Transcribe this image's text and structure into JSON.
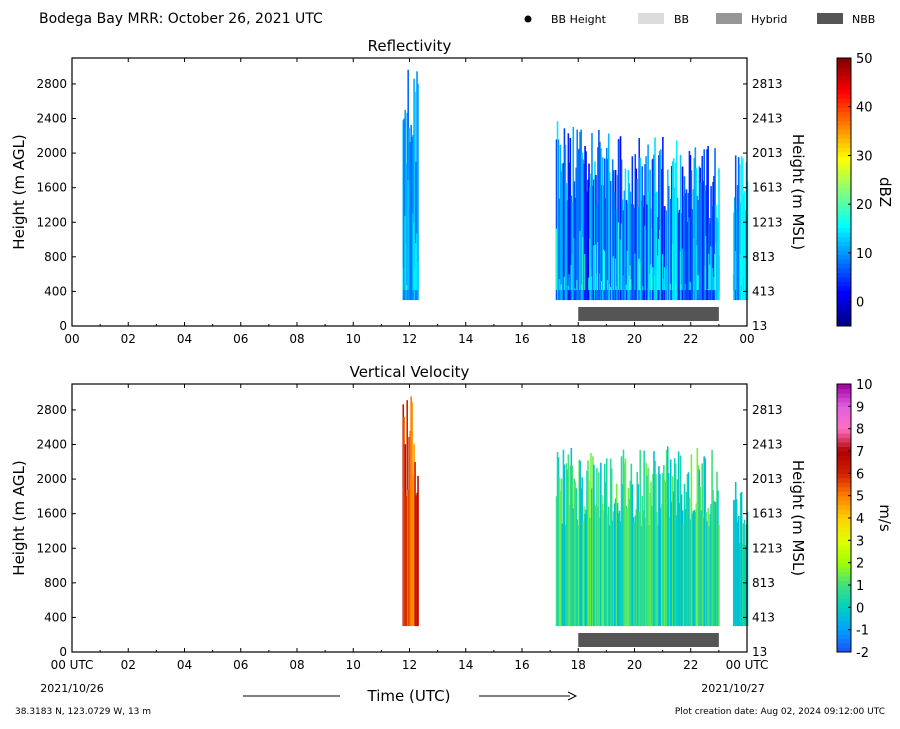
{
  "header": {
    "title": "Bodega Bay MRR:  October 26, 2021 UTC",
    "legend": [
      {
        "label": "BB Height",
        "marker": "dot",
        "color": "#000000"
      },
      {
        "label": "BB",
        "marker": "rect",
        "color": "#dcdcdc"
      },
      {
        "label": "Hybrid",
        "marker": "rect",
        "color": "#969696"
      },
      {
        "label": "NBB",
        "marker": "rect",
        "color": "#555555"
      }
    ]
  },
  "chart_data": [
    {
      "type": "heatmap",
      "title": "Reflectivity",
      "ylabel": "Height (m AGL)",
      "ylabel_right": "Height (m MSL)",
      "xlim": [
        0,
        24
      ],
      "ylim": [
        0,
        3100
      ],
      "xticks": [
        "00",
        "02",
        "04",
        "06",
        "08",
        "10",
        "12",
        "14",
        "16",
        "18",
        "20",
        "22",
        "00"
      ],
      "yticks": [
        0,
        400,
        800,
        1200,
        1600,
        2000,
        2400,
        2800
      ],
      "yticks_right": [
        "13",
        "413",
        "813",
        "1213",
        "1613",
        "2013",
        "2413",
        "2813"
      ],
      "colorbar": {
        "label": "dBZ",
        "range": [
          -5,
          50
        ],
        "ticks": [
          0,
          10,
          20,
          30,
          40,
          50
        ],
        "colors": [
          "#00007f",
          "#0000ff",
          "#007fff",
          "#00ffff",
          "#7fff7f",
          "#ffff00",
          "#ff7f00",
          "#ff0000",
          "#7f0000"
        ]
      },
      "echo_regions": [
        {
          "x_start": 11.75,
          "x_end": 12.3,
          "y_bottom": 300,
          "y_top": 3000,
          "intensity": "weak-moderate"
        },
        {
          "x_start": 17.2,
          "x_end": 23.0,
          "y_bottom": 300,
          "y_top": 2400,
          "intensity": "weak-moderate"
        },
        {
          "x_start": 23.5,
          "x_end": 24.0,
          "y_bottom": 300,
          "y_top": 2000,
          "intensity": "weak"
        }
      ],
      "bar": {
        "type": "NBB",
        "x_start": 18.0,
        "x_end": 23.0
      }
    },
    {
      "type": "heatmap",
      "title": "Vertical Velocity",
      "ylabel": "Height (m AGL)",
      "ylabel_right": "Height (m MSL)",
      "xlabel": "Time (UTC)",
      "xlim": [
        0,
        24
      ],
      "ylim": [
        0,
        3100
      ],
      "xticks": [
        "00 UTC",
        "02",
        "04",
        "06",
        "08",
        "10",
        "12",
        "14",
        "16",
        "18",
        "20",
        "22",
        "00 UTC"
      ],
      "yticks": [
        0,
        400,
        800,
        1200,
        1600,
        2000,
        2400,
        2800
      ],
      "yticks_right": [
        "13",
        "413",
        "813",
        "1213",
        "1613",
        "2013",
        "2413",
        "2813"
      ],
      "colorbar": {
        "label": "m/s",
        "range": [
          -2,
          10
        ],
        "ticks": [
          -2,
          -1,
          0,
          1,
          2,
          3,
          4,
          5,
          6,
          7,
          8,
          9,
          10
        ],
        "colors": [
          "#1f4fff",
          "#00a0ff",
          "#00d0c0",
          "#40e080",
          "#a0ff00",
          "#e0ff00",
          "#ffd000",
          "#ff8000",
          "#d02000",
          "#b00000",
          "#ff70c0",
          "#e060e0",
          "#a000a0"
        ]
      },
      "echo_regions": [
        {
          "x_start": 11.75,
          "x_end": 12.3,
          "y_bottom": 300,
          "y_top": 3000,
          "intensity": "4-6 m/s"
        },
        {
          "x_start": 17.2,
          "x_end": 23.0,
          "y_bottom": 300,
          "y_top": 2400,
          "intensity": "0-2 m/s"
        },
        {
          "x_start": 23.5,
          "x_end": 24.0,
          "y_bottom": 300,
          "y_top": 2000,
          "intensity": "0-1 m/s"
        }
      ],
      "bar": {
        "type": "NBB",
        "x_start": 18.0,
        "x_end": 23.0
      }
    }
  ],
  "footer": {
    "date_left": "2021/10/26",
    "date_right": "2021/10/27",
    "xlabel": "Time (UTC)",
    "location": "38.3183 N, 123.0729 W, 13 m",
    "creation": "Plot creation date: Aug 02, 2024 09:12:00 UTC"
  }
}
